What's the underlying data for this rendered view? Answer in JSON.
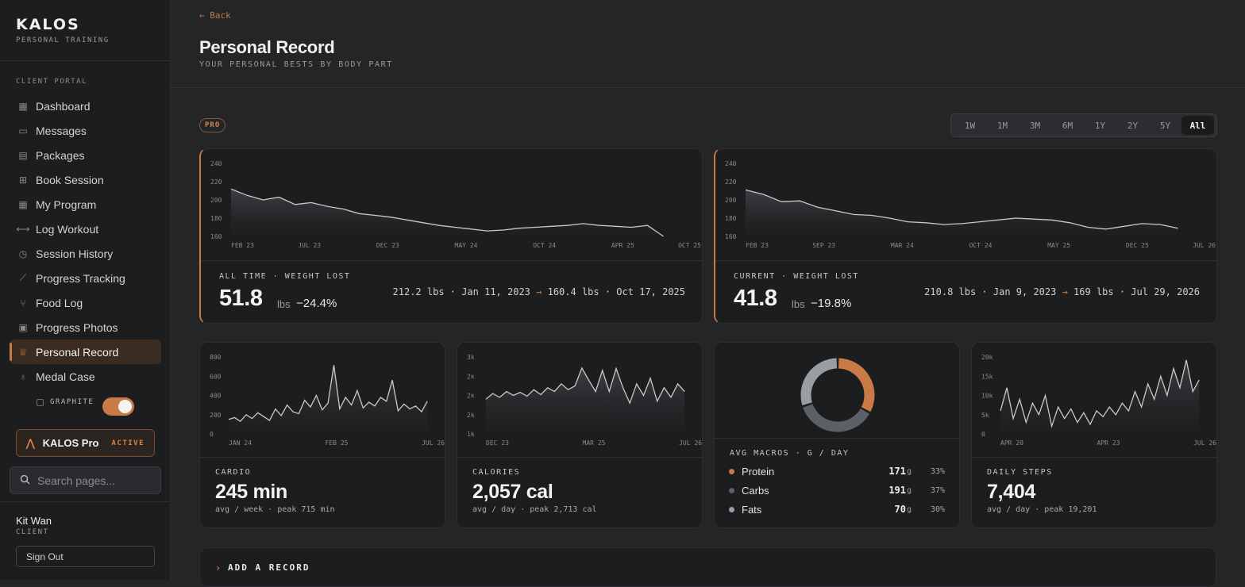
{
  "brand": {
    "name": "KALOS",
    "sub": "PERSONAL TRAINING"
  },
  "sidebar": {
    "section_label": "CLIENT PORTAL",
    "items": [
      {
        "label": "Dashboard",
        "icon": "grid-icon"
      },
      {
        "label": "Messages",
        "icon": "chat-icon"
      },
      {
        "label": "Packages",
        "icon": "briefcase-icon"
      },
      {
        "label": "Book Session",
        "icon": "plus-square-icon"
      },
      {
        "label": "My Program",
        "icon": "table-icon"
      },
      {
        "label": "Log Workout",
        "icon": "dumbbell-icon"
      },
      {
        "label": "Session History",
        "icon": "clock-icon"
      },
      {
        "label": "Progress Tracking",
        "icon": "trend-icon"
      },
      {
        "label": "Food Log",
        "icon": "utensils-icon"
      },
      {
        "label": "Progress Photos",
        "icon": "camera-icon"
      },
      {
        "label": "Personal Record",
        "icon": "trophy-icon",
        "active": true
      },
      {
        "label": "Medal Case",
        "icon": "medal-icon"
      }
    ],
    "theme_label": "GRAPHITE",
    "pro": {
      "name": "KALOS Pro",
      "status": "ACTIVE"
    },
    "search_placeholder": "Search pages...",
    "user": {
      "name": "Kit Wan",
      "role": "CLIENT"
    },
    "signout": "Sign Out"
  },
  "header": {
    "back": "← Back",
    "title": "Personal Record",
    "subtitle": "YOUR PERSONAL BESTS BY BODY PART"
  },
  "pro_badge": "PRO",
  "ranges": [
    "1W",
    "1M",
    "3M",
    "6M",
    "1Y",
    "2Y",
    "5Y",
    "All"
  ],
  "active_range": "All",
  "accent": "#c97a46",
  "weight_cards": [
    {
      "label": "ALL TIME · WEIGHT LOST",
      "value": "51.8",
      "unit": "lbs",
      "pct": "−24.4%",
      "from": "212.2 lbs · Jan 11, 2023",
      "arrow": "→",
      "to": "160.4 lbs · Oct 17, 2025"
    },
    {
      "label": "CURRENT · WEIGHT LOST",
      "value": "41.8",
      "unit": "lbs",
      "pct": "−19.8%",
      "from": "210.8 lbs · Jan 9, 2023",
      "arrow": "→",
      "to": "169 lbs · Jul 29, 2026"
    }
  ],
  "small_cards": [
    {
      "label": "CARDIO",
      "value": "245 min",
      "sub": "avg / week · peak 715 min"
    },
    {
      "label": "CALORIES",
      "value": "2,057 cal",
      "sub": "avg / day · peak 2,713 cal"
    },
    {
      "label": "DAILY STEPS",
      "value": "7,404",
      "sub": "avg / day · peak 19,201"
    }
  ],
  "macros": {
    "label": "AVG MACROS · G / DAY",
    "rows": [
      {
        "name": "Protein",
        "grams": "171",
        "unit": "g",
        "pct": "33%",
        "color": "#c97a46"
      },
      {
        "name": "Carbs",
        "grams": "191",
        "unit": "g",
        "pct": "37%",
        "color": "#5d6066"
      },
      {
        "name": "Fats",
        "grams": "70",
        "unit": "g",
        "pct": "30%",
        "color": "#9a9ea3"
      }
    ]
  },
  "chart_data": [
    {
      "type": "line",
      "title": "All time weight",
      "x_ticks": [
        "FEB 23",
        "JUL 23",
        "DEC 23",
        "MAY 24",
        "OCT 24",
        "APR 25",
        "OCT 25"
      ],
      "y_ticks": [
        "240",
        "220",
        "200",
        "180",
        "160"
      ],
      "ylim": [
        160,
        240
      ],
      "series": [
        {
          "values": [
            212,
            205,
            200,
            203,
            195,
            197,
            193,
            190,
            185,
            183,
            181,
            178,
            175,
            172,
            170,
            168,
            166,
            167,
            169,
            170,
            171,
            172,
            174,
            172,
            171,
            170,
            172,
            160
          ]
        }
      ]
    },
    {
      "type": "line",
      "title": "Current weight",
      "x_ticks": [
        "FEB 23",
        "SEP 23",
        "MAR 24",
        "OCT 24",
        "MAY 25",
        "DEC 25",
        "JUL 26"
      ],
      "y_ticks": [
        "240",
        "220",
        "200",
        "180",
        "160"
      ],
      "ylim": [
        160,
        240
      ],
      "series": [
        {
          "values": [
            211,
            206,
            198,
            199,
            192,
            188,
            184,
            183,
            180,
            176,
            175,
            173,
            174,
            176,
            178,
            180,
            179,
            178,
            175,
            170,
            168,
            171,
            174,
            173,
            169
          ]
        }
      ]
    },
    {
      "type": "line",
      "title": "Cardio",
      "x_ticks": [
        "JAN 24",
        "FEB 25",
        "JUL 26"
      ],
      "y_ticks": [
        "800",
        "600",
        "400",
        "200",
        "0"
      ],
      "ylim": [
        0,
        800
      ],
      "series": [
        {
          "values": [
            150,
            170,
            130,
            200,
            160,
            220,
            180,
            140,
            260,
            190,
            300,
            230,
            210,
            350,
            280,
            400,
            250,
            320,
            715,
            260,
            380,
            300,
            450,
            270,
            330,
            290,
            380,
            340,
            560,
            240,
            310,
            260,
            290,
            230,
            340
          ]
        }
      ]
    },
    {
      "type": "line",
      "title": "Calories",
      "x_ticks": [
        "DEC 23",
        "MAR 25",
        "JUL 26"
      ],
      "y_ticks": [
        "3k",
        "2k",
        "2k",
        "2k",
        "1k"
      ],
      "ylim": [
        1000,
        3000
      ],
      "series": [
        {
          "values": [
            1900,
            2050,
            1950,
            2100,
            2000,
            2080,
            1980,
            2150,
            2020,
            2200,
            2100,
            2300,
            2150,
            2250,
            2713,
            2400,
            2100,
            2650,
            2100,
            2700,
            2200,
            1800,
            2300,
            2000,
            2450,
            1850,
            2200,
            1950,
            2300,
            2100
          ]
        }
      ]
    },
    {
      "type": "pie",
      "title": "Avg macros",
      "categories": [
        "Protein",
        "Carbs",
        "Fats"
      ],
      "values": [
        33,
        37,
        30
      ]
    },
    {
      "type": "line",
      "title": "Daily steps",
      "x_ticks": [
        "APR 20",
        "APR 23",
        "JUL 26"
      ],
      "y_ticks": [
        "20k",
        "15k",
        "10k",
        "5k",
        "0"
      ],
      "ylim": [
        0,
        20000
      ],
      "series": [
        {
          "values": [
            6000,
            12000,
            4000,
            9000,
            3000,
            8000,
            5000,
            10000,
            2000,
            7000,
            4000,
            6500,
            3000,
            5500,
            2500,
            6000,
            4500,
            7000,
            5000,
            8000,
            6000,
            11000,
            7000,
            13000,
            9000,
            15000,
            10000,
            17000,
            12000,
            19201,
            11000,
            14000
          ]
        }
      ]
    }
  ]
}
